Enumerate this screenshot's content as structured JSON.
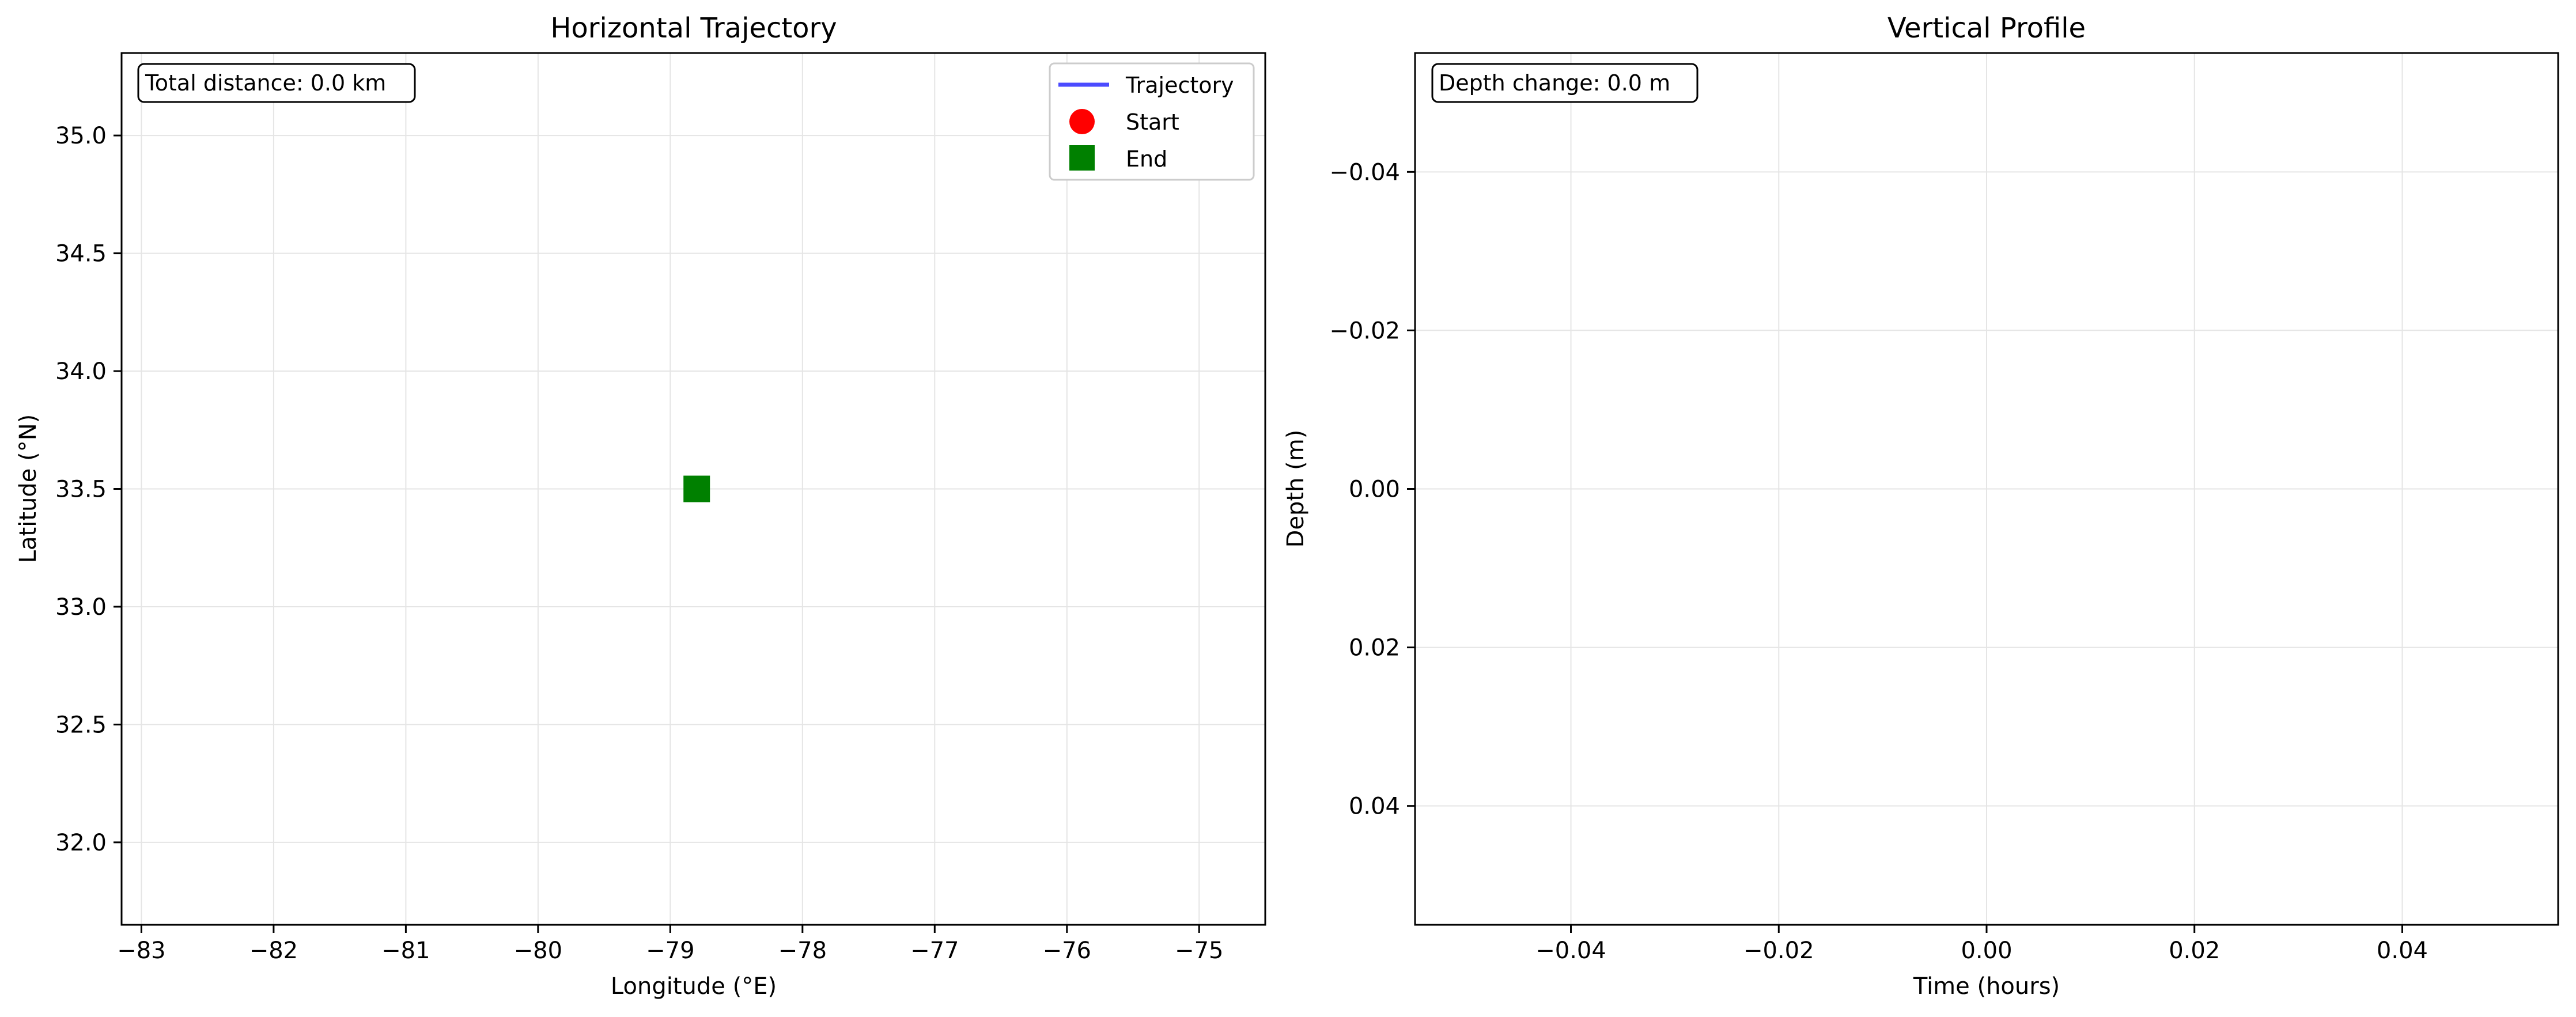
{
  "chart_data": [
    {
      "type": "line",
      "title": "Horizontal Trajectory",
      "xlabel": "Longitude (°E)",
      "ylabel": "Latitude (°N)",
      "xlim": [
        -83.15,
        -74.5
      ],
      "ylim": [
        31.65,
        35.35
      ],
      "xticks": [
        -83,
        -82,
        -81,
        -80,
        -79,
        -78,
        -77,
        -76,
        -75
      ],
      "xtick_labels": [
        "−83",
        "−82",
        "−81",
        "−80",
        "−79",
        "−78",
        "−77",
        "−76",
        "−75"
      ],
      "yticks": [
        32.0,
        32.5,
        33.0,
        33.5,
        34.0,
        34.5,
        35.0
      ],
      "ytick_labels": [
        "32.0",
        "32.5",
        "33.0",
        "33.5",
        "34.0",
        "34.5",
        "35.0"
      ],
      "grid": true,
      "annotation": "Total distance: 0.0 km",
      "legend": {
        "placement": "top-right",
        "entries": [
          {
            "label": "Trajectory",
            "marker": "line",
            "color": "#4b4bff"
          },
          {
            "label": "Start",
            "marker": "circle",
            "color": "#ff0000"
          },
          {
            "label": "End",
            "marker": "square",
            "color": "#008000"
          }
        ]
      },
      "series": [
        {
          "name": "Trajectory",
          "color": "#4b4bff",
          "x": [
            -78.8
          ],
          "y": [
            33.5
          ]
        },
        {
          "name": "Start",
          "color": "#ff0000",
          "x": [
            -78.8
          ],
          "y": [
            33.5
          ]
        },
        {
          "name": "End",
          "color": "#008000",
          "x": [
            -78.8
          ],
          "y": [
            33.5
          ]
        }
      ]
    },
    {
      "type": "line",
      "title": "Vertical Profile",
      "xlabel": "Time (hours)",
      "ylabel": "Depth (m)",
      "xlim": [
        -0.055,
        0.055
      ],
      "ylim": [
        0.055,
        -0.055
      ],
      "y_inverted": true,
      "xticks": [
        -0.04,
        -0.02,
        0.0,
        0.02,
        0.04
      ],
      "xtick_labels": [
        "−0.04",
        "−0.02",
        "0.00",
        "0.02",
        "0.04"
      ],
      "yticks": [
        -0.04,
        -0.02,
        0.0,
        0.02,
        0.04
      ],
      "ytick_labels": [
        "−0.04",
        "−0.02",
        "0.00",
        "0.02",
        "0.04"
      ],
      "grid": true,
      "annotation": "Depth change: 0.0 m",
      "series": []
    }
  ],
  "colors": {
    "grid": "#e5e5e5",
    "axes": "#000000",
    "background": "#ffffff"
  }
}
